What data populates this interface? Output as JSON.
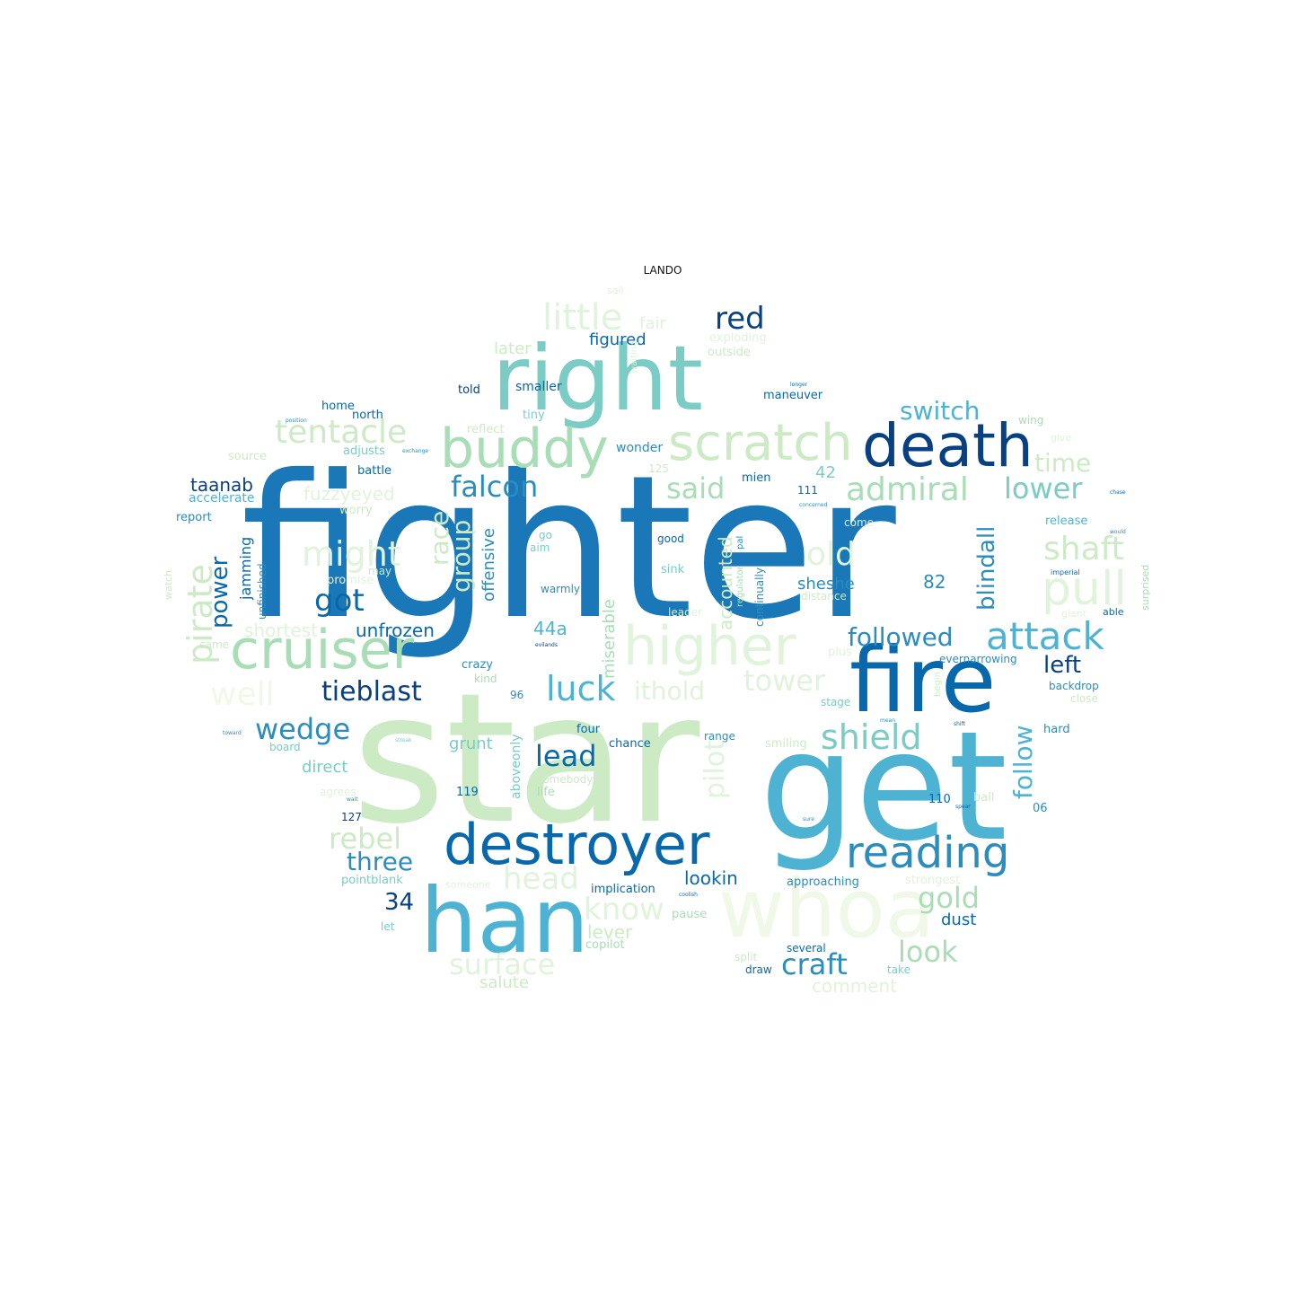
{
  "title": "LANDO",
  "palette": {
    "darkest": "#084081",
    "dark": "#0868ac",
    "blue": "#2b8cbe",
    "mid": "#4eb3d3",
    "teal": "#7bccc4",
    "green": "#a8ddb5",
    "light": "#ccebc5",
    "lightest": "#e0f3db",
    "faint": "#f0f9e8"
  },
  "words": [
    {
      "text": "fighter",
      "color": "#1a78b8"
    },
    {
      "text": "star",
      "color": "#ccebc5"
    },
    {
      "text": "get",
      "color": "#4eb3d3"
    },
    {
      "text": "han",
      "color": "#4eb3d3"
    },
    {
      "text": "whoa",
      "color": "#f0f9e8"
    },
    {
      "text": "right",
      "color": "#7bccc4"
    },
    {
      "text": "fire",
      "color": "#0868ac"
    },
    {
      "text": "destroyer",
      "color": "#0868ac"
    },
    {
      "text": "death",
      "color": "#084081"
    },
    {
      "text": "buddy",
      "color": "#a8ddb5"
    },
    {
      "text": "scratch",
      "color": "#ccebc5"
    },
    {
      "text": "higher",
      "color": "#e0f3db"
    },
    {
      "text": "cruiser",
      "color": "#a8ddb5"
    },
    {
      "text": "reading",
      "color": "#2b8cbe"
    },
    {
      "text": "pull",
      "color": "#e0f3db"
    },
    {
      "text": "little",
      "color": "#e0f3db"
    },
    {
      "text": "tentacle",
      "color": "#ccebc5"
    },
    {
      "text": "attack",
      "color": "#4eb3d3"
    },
    {
      "text": "admiral",
      "color": "#a8ddb5"
    },
    {
      "text": "lower",
      "color": "#7bccc4"
    },
    {
      "text": "falcon",
      "color": "#2b8cbe"
    },
    {
      "text": "might",
      "color": "#e0f3db"
    },
    {
      "text": "shaft",
      "color": "#ccebc5"
    },
    {
      "text": "pirate",
      "color": "#ccebc5"
    },
    {
      "text": "said",
      "color": "#a8ddb5"
    },
    {
      "text": "old",
      "color": "#e0f3db"
    },
    {
      "text": "shield",
      "color": "#7bccc4"
    },
    {
      "text": "luck",
      "color": "#4eb3d3"
    },
    {
      "text": "well",
      "color": "#f0f9e8"
    },
    {
      "text": "tower",
      "color": "#e0f3db"
    },
    {
      "text": "ithold",
      "color": "#e0f3db"
    },
    {
      "text": "red",
      "color": "#084081"
    },
    {
      "text": "switch",
      "color": "#4eb3d3"
    },
    {
      "text": "got",
      "color": "#0868ac"
    },
    {
      "text": "followed",
      "color": "#2b8cbe"
    },
    {
      "text": "tieblast",
      "color": "#084081"
    },
    {
      "text": "wedge",
      "color": "#2b8cbe"
    },
    {
      "text": "lead",
      "color": "#0868ac"
    },
    {
      "text": "rebel",
      "color": "#ccebc5"
    },
    {
      "text": "time",
      "color": "#ccebc5"
    },
    {
      "text": "gold",
      "color": "#a8ddb5"
    },
    {
      "text": "look",
      "color": "#a8ddb5"
    },
    {
      "text": "craft",
      "color": "#2b8cbe"
    },
    {
      "text": "head",
      "color": "#e0f3db"
    },
    {
      "text": "know",
      "color": "#e0f3db"
    },
    {
      "text": "surface",
      "color": "#e0f3db"
    },
    {
      "text": "three",
      "color": "#2b8cbe"
    },
    {
      "text": "34",
      "color": "#084081"
    },
    {
      "text": "power",
      "color": "#0868ac"
    },
    {
      "text": "race",
      "color": "#ccebc5"
    },
    {
      "text": "group",
      "color": "#ccebc5"
    },
    {
      "text": "pilot",
      "color": "#e0f3db"
    },
    {
      "text": "blindall",
      "color": "#2b8cbe"
    },
    {
      "text": "follow",
      "color": "#4eb3d3"
    },
    {
      "text": "left",
      "color": "#084081"
    },
    {
      "text": "offensive",
      "color": "#2b8cbe"
    },
    {
      "text": "accounted",
      "color": "#ccebc5"
    },
    {
      "text": "miserable",
      "color": "#a8ddb5"
    },
    {
      "text": "fuzzyeyed",
      "color": "#e0f3db"
    },
    {
      "text": "taanab",
      "color": "#084081"
    },
    {
      "text": "jamming",
      "color": "#0868ac"
    },
    {
      "text": "unfrozen",
      "color": "#0868ac"
    },
    {
      "text": "shortest",
      "color": "#e0f3db"
    },
    {
      "text": "figured",
      "color": "#0868ac"
    },
    {
      "text": "later",
      "color": "#ccebc5"
    },
    {
      "text": "fair",
      "color": "#e0f3db"
    },
    {
      "text": "42",
      "color": "#7bccc4"
    },
    {
      "text": "82",
      "color": "#2b8cbe"
    },
    {
      "text": "44a",
      "color": "#4eb3d3"
    },
    {
      "text": "sheshe",
      "color": "#2b8cbe"
    },
    {
      "text": "grunt",
      "color": "#7bccc4"
    },
    {
      "text": "direct",
      "color": "#7bccc4"
    },
    {
      "text": "lookin",
      "color": "#0868ac"
    },
    {
      "text": "lever",
      "color": "#ccebc5"
    },
    {
      "text": "dust",
      "color": "#0868ac"
    },
    {
      "text": "salute",
      "color": "#ccebc5"
    },
    {
      "text": "comment",
      "color": "#e0f3db"
    },
    {
      "text": "aboveonly",
      "color": "#7bccc4"
    },
    {
      "text": "smaller",
      "color": "#0868ac"
    },
    {
      "text": "told",
      "color": "#084081"
    },
    {
      "text": "tiny",
      "color": "#7bccc4"
    },
    {
      "text": "reflect",
      "color": "#ccebc5"
    },
    {
      "text": "wonder",
      "color": "#2b8cbe"
    },
    {
      "text": "maneuver",
      "color": "#0868ac"
    },
    {
      "text": "outside",
      "color": "#ccebc5"
    },
    {
      "text": "exploding",
      "color": "#e0f3db"
    },
    {
      "text": "home",
      "color": "#0868ac"
    },
    {
      "text": "north",
      "color": "#0868ac"
    },
    {
      "text": "source",
      "color": "#ccebc5"
    },
    {
      "text": "adjusts",
      "color": "#7bccc4"
    },
    {
      "text": "battle",
      "color": "#0868ac"
    },
    {
      "text": "accelerate",
      "color": "#4eb3d3"
    },
    {
      "text": "report",
      "color": "#2b8cbe"
    },
    {
      "text": "worry",
      "color": "#ccebc5"
    },
    {
      "text": "unfinished",
      "color": "#2b8cbe"
    },
    {
      "text": "watch",
      "color": "#ccebc5"
    },
    {
      "text": "promise",
      "color": "#e0f3db"
    },
    {
      "text": "came",
      "color": "#ccebc5"
    },
    {
      "text": "crazy",
      "color": "#2b8cbe"
    },
    {
      "text": "kind",
      "color": "#a8ddb5"
    },
    {
      "text": "96",
      "color": "#2b8cbe"
    },
    {
      "text": "four",
      "color": "#0868ac"
    },
    {
      "text": "chance",
      "color": "#0868ac"
    },
    {
      "text": "board",
      "color": "#7bccc4"
    },
    {
      "text": "119",
      "color": "#0868ac"
    },
    {
      "text": "127",
      "color": "#084081"
    },
    {
      "text": "life",
      "color": "#a8ddb5"
    },
    {
      "text": "somebody",
      "color": "#ccebc5"
    },
    {
      "text": "pointblank",
      "color": "#7bccc4"
    },
    {
      "text": "implication",
      "color": "#0868ac"
    },
    {
      "text": "let",
      "color": "#7bccc4"
    },
    {
      "text": "copilot",
      "color": "#a8ddb5"
    },
    {
      "text": "pause",
      "color": "#a8ddb5"
    },
    {
      "text": "go",
      "color": "#7bccc4"
    },
    {
      "text": "aim",
      "color": "#7bccc4"
    },
    {
      "text": "may",
      "color": "#ccebc5"
    },
    {
      "text": "warmly",
      "color": "#2b8cbe"
    },
    {
      "text": "good",
      "color": "#0868ac"
    },
    {
      "text": "sink",
      "color": "#7bccc4"
    },
    {
      "text": "continually",
      "color": "#2b8cbe"
    },
    {
      "text": "leader",
      "color": "#e0f3db"
    },
    {
      "text": "mien",
      "color": "#0868ac"
    },
    {
      "text": "111",
      "color": "#0868ac"
    },
    {
      "text": "125",
      "color": "#ccebc5"
    },
    {
      "text": "distance",
      "color": "#ccebc5"
    },
    {
      "text": "approaching",
      "color": "#2b8cbe"
    },
    {
      "text": "several",
      "color": "#0868ac"
    },
    {
      "text": "split",
      "color": "#ccebc5"
    },
    {
      "text": "draw",
      "color": "#0868ac"
    },
    {
      "text": "take",
      "color": "#7bccc4"
    },
    {
      "text": "smiling",
      "color": "#ccebc5"
    },
    {
      "text": "range",
      "color": "#2b8cbe"
    },
    {
      "text": "stage",
      "color": "#7bccc4"
    },
    {
      "text": "plus",
      "color": "#e0f3db"
    },
    {
      "text": "evernarrowing",
      "color": "#2b8cbe"
    },
    {
      "text": "backdrop",
      "color": "#2b8cbe"
    },
    {
      "text": "close",
      "color": "#ccebc5"
    },
    {
      "text": "hard",
      "color": "#2b8cbe"
    },
    {
      "text": "ball",
      "color": "#ccebc5"
    },
    {
      "text": "110",
      "color": "#0868ac"
    },
    {
      "text": "06",
      "color": "#2b8cbe"
    },
    {
      "text": "strongest",
      "color": "#e0f3db"
    },
    {
      "text": "someone",
      "color": "#e0f3db"
    },
    {
      "text": "wing",
      "color": "#a8ddb5"
    },
    {
      "text": "give",
      "color": "#e0f3db"
    },
    {
      "text": "release",
      "color": "#4eb3d3"
    },
    {
      "text": "able",
      "color": "#0868ac"
    },
    {
      "text": "surprised",
      "color": "#a8ddb5"
    },
    {
      "text": "giant",
      "color": "#e0f3db"
    },
    {
      "text": "come",
      "color": "#e0f3db"
    },
    {
      "text": "begin",
      "color": "#ccebc5"
    },
    {
      "text": "sail",
      "color": "#e0f3db"
    },
    {
      "text": "waiting",
      "color": "#e0f3db"
    },
    {
      "text": "regulator",
      "color": "#a8ddb5"
    },
    {
      "text": "pal",
      "color": "#2b8cbe"
    },
    {
      "text": "imperial",
      "color": "#0868ac"
    },
    {
      "text": "exchange",
      "color": "#2b8cbe"
    },
    {
      "text": "position",
      "color": "#2b8cbe"
    },
    {
      "text": "concerned",
      "color": "#2b8cbe"
    },
    {
      "text": "longer",
      "color": "#0868ac"
    },
    {
      "text": "would",
      "color": "#2b8cbe"
    },
    {
      "text": "chase",
      "color": "#0868ac"
    },
    {
      "text": "toward",
      "color": "#2b8cbe"
    },
    {
      "text": "streak",
      "color": "#7bccc4"
    },
    {
      "text": "sure",
      "color": "#2b8cbe"
    },
    {
      "text": "spear",
      "color": "#0868ac"
    },
    {
      "text": "coolish",
      "color": "#0868ac"
    },
    {
      "text": "mean",
      "color": "#2b8cbe"
    },
    {
      "text": "evilands",
      "color": "#084081"
    },
    {
      "text": "wait",
      "color": "#2b8cbe"
    },
    {
      "text": "shift",
      "color": "#0868ac"
    },
    {
      "text": "agrees",
      "color": "#e0f3db"
    }
  ]
}
